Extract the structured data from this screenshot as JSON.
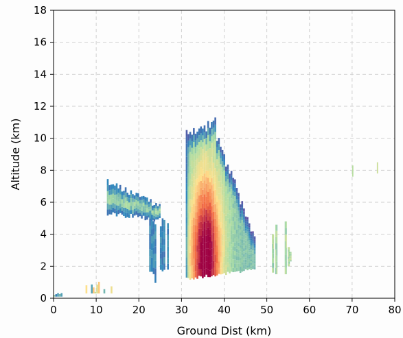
{
  "chart_data": {
    "type": "heatmap",
    "title": "",
    "xlabel": "Ground Dist (km)",
    "ylabel": "Altitude (km)",
    "xlim": [
      0,
      80
    ],
    "ylim": [
      0,
      18
    ],
    "xticks": [
      0,
      10,
      20,
      30,
      40,
      50,
      60,
      70,
      80
    ],
    "yticks": [
      0,
      2,
      4,
      6,
      8,
      10,
      12,
      14,
      16,
      18
    ],
    "grid": true,
    "colormap": "Spectral_r",
    "colors": {
      "low": "#5e4fa2",
      "mid_low": "#3288bd",
      "mid": "#abdda4",
      "mid_high": "#fee08b",
      "high": "#f46d43",
      "peak": "#9e0142"
    },
    "echoes": [
      {
        "name": "near-ground-clutter",
        "x": [
          0,
          2
        ],
        "y": [
          0.1,
          0.3
        ],
        "intensity": 0.1
      },
      {
        "name": "low-cells",
        "x": [
          7.5,
          13.5
        ],
        "y": [
          0.3,
          1.1
        ],
        "intensity": 0.25
      },
      {
        "name": "upper-layer-cloud",
        "x": [
          12.5,
          25
        ],
        "y": [
          4.8,
          7.5
        ],
        "intensity": 0.3
      },
      {
        "name": "fall-streak",
        "x": [
          22,
          27.5
        ],
        "y": [
          0.8,
          5.5
        ],
        "intensity": 0.2
      },
      {
        "name": "main-convective-cell",
        "x": [
          31,
          47
        ],
        "y": [
          1.1,
          11.4
        ],
        "intensity": 0.95,
        "peak": [
          35.5,
          2.6
        ]
      },
      {
        "name": "isolated-cells",
        "x": [
          51,
          55.5
        ],
        "y": [
          1.5,
          4.8
        ],
        "intensity": 0.45
      },
      {
        "name": "far-speckles",
        "x": [
          70,
          76
        ],
        "y": [
          7.6,
          8.5
        ],
        "intensity": 0.5
      }
    ]
  }
}
